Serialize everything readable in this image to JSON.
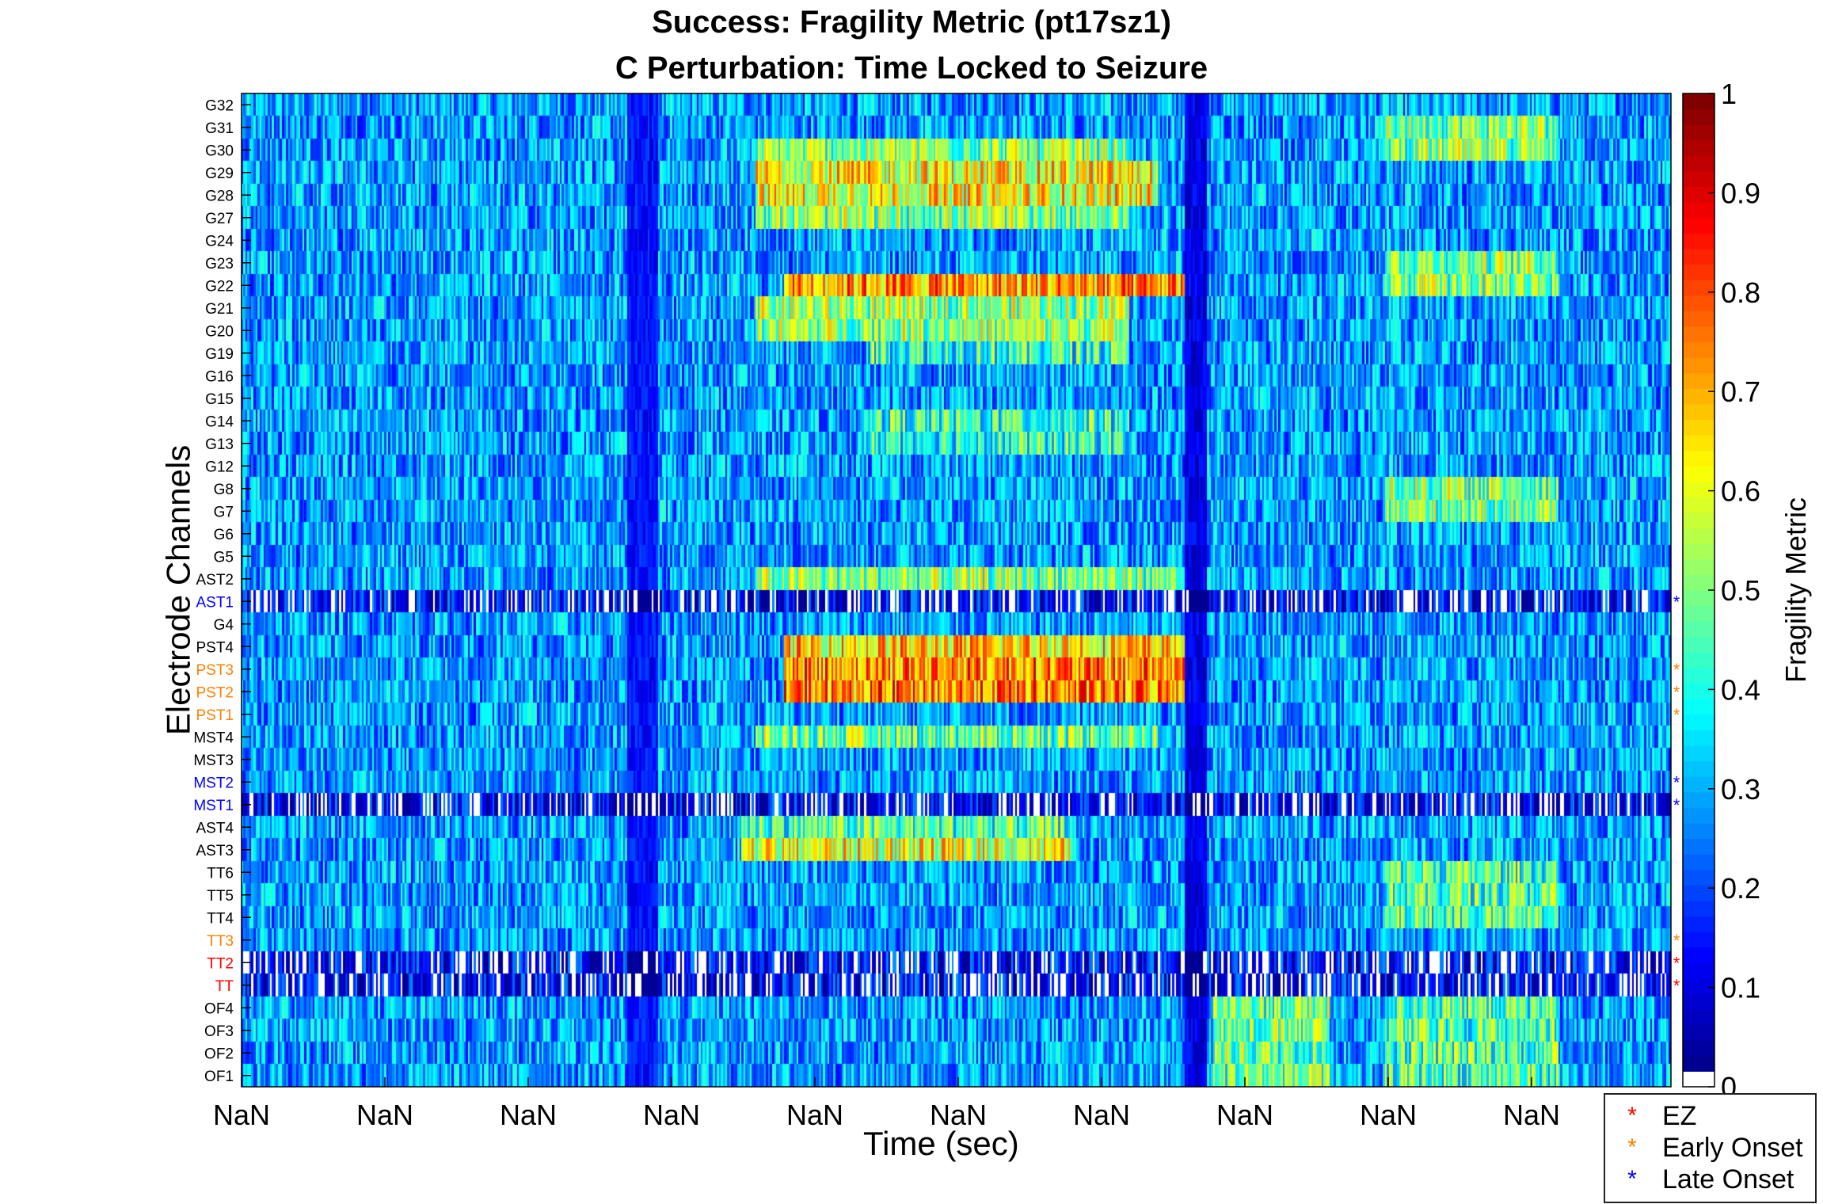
{
  "chart_data": {
    "type": "heatmap",
    "title": "Success: Fragility Metric (pt17sz1)",
    "subtitle": "C Perturbation:  Time Locked to Seizure",
    "xlabel": "Time (sec)",
    "ylabel": "Electrode Channels",
    "colorbar_label": "Fragility Metric",
    "colorbar_ticks": [
      "0",
      "0.1",
      "0.2",
      "0.3",
      "0.4",
      "0.5",
      "0.6",
      "0.7",
      "0.8",
      "0.9",
      "1"
    ],
    "clim": [
      0,
      1
    ],
    "colormap": "jet",
    "x_tick_labels": [
      "NaN",
      "NaN",
      "NaN",
      "NaN",
      "NaN",
      "NaN",
      "NaN",
      "NaN",
      "NaN",
      "NaN"
    ],
    "channels": [
      {
        "label": "G32",
        "group": "none"
      },
      {
        "label": "G31",
        "group": "none"
      },
      {
        "label": "G30",
        "group": "none"
      },
      {
        "label": "G29",
        "group": "none"
      },
      {
        "label": "G28",
        "group": "none"
      },
      {
        "label": "G27",
        "group": "none"
      },
      {
        "label": "G24",
        "group": "none"
      },
      {
        "label": "G23",
        "group": "none"
      },
      {
        "label": "G22",
        "group": "none"
      },
      {
        "label": "G21",
        "group": "none"
      },
      {
        "label": "G20",
        "group": "none"
      },
      {
        "label": "G19",
        "group": "none"
      },
      {
        "label": "G16",
        "group": "none"
      },
      {
        "label": "G15",
        "group": "none"
      },
      {
        "label": "G14",
        "group": "none"
      },
      {
        "label": "G13",
        "group": "none"
      },
      {
        "label": "G12",
        "group": "none"
      },
      {
        "label": "G8",
        "group": "none"
      },
      {
        "label": "G7",
        "group": "none"
      },
      {
        "label": "G6",
        "group": "none"
      },
      {
        "label": "G5",
        "group": "none"
      },
      {
        "label": "AST2",
        "group": "none"
      },
      {
        "label": "AST1",
        "group": "late"
      },
      {
        "label": "G4",
        "group": "none"
      },
      {
        "label": "PST4",
        "group": "none"
      },
      {
        "label": "PST3",
        "group": "early"
      },
      {
        "label": "PST2",
        "group": "early"
      },
      {
        "label": "PST1",
        "group": "early"
      },
      {
        "label": "MST4",
        "group": "none"
      },
      {
        "label": "MST3",
        "group": "none"
      },
      {
        "label": "MST2",
        "group": "late"
      },
      {
        "label": "MST1",
        "group": "late"
      },
      {
        "label": "AST4",
        "group": "none"
      },
      {
        "label": "AST3",
        "group": "none"
      },
      {
        "label": "TT6",
        "group": "none"
      },
      {
        "label": "TT5",
        "group": "none"
      },
      {
        "label": "TT4",
        "group": "none"
      },
      {
        "label": "TT3",
        "group": "early"
      },
      {
        "label": "TT2",
        "group": "ez"
      },
      {
        "label": "TT",
        "group": "ez"
      },
      {
        "label": "OF4",
        "group": "none"
      },
      {
        "label": "OF3",
        "group": "none"
      },
      {
        "label": "OF2",
        "group": "none"
      },
      {
        "label": "OF1",
        "group": "none"
      }
    ],
    "group_colors": {
      "ez": "#ff0000",
      "early": "#ff8000",
      "late": "#0000ff",
      "none": "#000000"
    },
    "legend": [
      {
        "label": "EZ",
        "color": "#ff0000",
        "marker": "*"
      },
      {
        "label": "Early Onset",
        "color": "#ff8000",
        "marker": "*"
      },
      {
        "label": "Late Onset",
        "color": "#0000ff",
        "marker": "*"
      }
    ],
    "legend_position": "bottom-right",
    "hot_regions": [
      {
        "channels": [
          "G29",
          "G28"
        ],
        "t_range": [
          0.36,
          0.64
        ],
        "level": 0.62
      },
      {
        "channels": [
          "G30",
          "G27"
        ],
        "t_range": [
          0.36,
          0.62
        ],
        "level": 0.5
      },
      {
        "channels": [
          "G22"
        ],
        "t_range": [
          0.38,
          0.66
        ],
        "level": 0.72
      },
      {
        "channels": [
          "G21",
          "G20"
        ],
        "t_range": [
          0.36,
          0.62
        ],
        "level": 0.52
      },
      {
        "channels": [
          "G19",
          "G14",
          "G13"
        ],
        "t_range": [
          0.44,
          0.62
        ],
        "level": 0.42
      },
      {
        "channels": [
          "AST2"
        ],
        "t_range": [
          0.36,
          0.66
        ],
        "level": 0.5
      },
      {
        "channels": [
          "PST4"
        ],
        "t_range": [
          0.38,
          0.66
        ],
        "level": 0.66
      },
      {
        "channels": [
          "PST3",
          "PST2"
        ],
        "t_range": [
          0.38,
          0.66
        ],
        "level": 0.74
      },
      {
        "channels": [
          "MST4"
        ],
        "t_range": [
          0.36,
          0.64
        ],
        "level": 0.48
      },
      {
        "channels": [
          "AST3"
        ],
        "t_range": [
          0.35,
          0.58
        ],
        "level": 0.6
      },
      {
        "channels": [
          "AST4"
        ],
        "t_range": [
          0.35,
          0.58
        ],
        "level": 0.45
      },
      {
        "channels": [
          "G31",
          "G30",
          "G23",
          "G22",
          "G8",
          "G7"
        ],
        "t_range": [
          0.8,
          0.92
        ],
        "level": 0.5
      },
      {
        "channels": [
          "OF4",
          "OF3",
          "OF2",
          "OF1"
        ],
        "t_range": [
          0.68,
          0.76
        ],
        "level": 0.48
      },
      {
        "channels": [
          "OF4",
          "OF3",
          "OF2",
          "OF1",
          "TT6",
          "TT5",
          "TT4"
        ],
        "t_range": [
          0.8,
          0.92
        ],
        "level": 0.45
      }
    ],
    "low_bands": [
      {
        "t_range": [
          0.27,
          0.29
        ],
        "level": 0.08
      },
      {
        "t_range": [
          0.66,
          0.675
        ],
        "level": 0.04
      }
    ],
    "white_rows": [
      "AST1",
      "MST1",
      "TT2",
      "TT"
    ]
  }
}
